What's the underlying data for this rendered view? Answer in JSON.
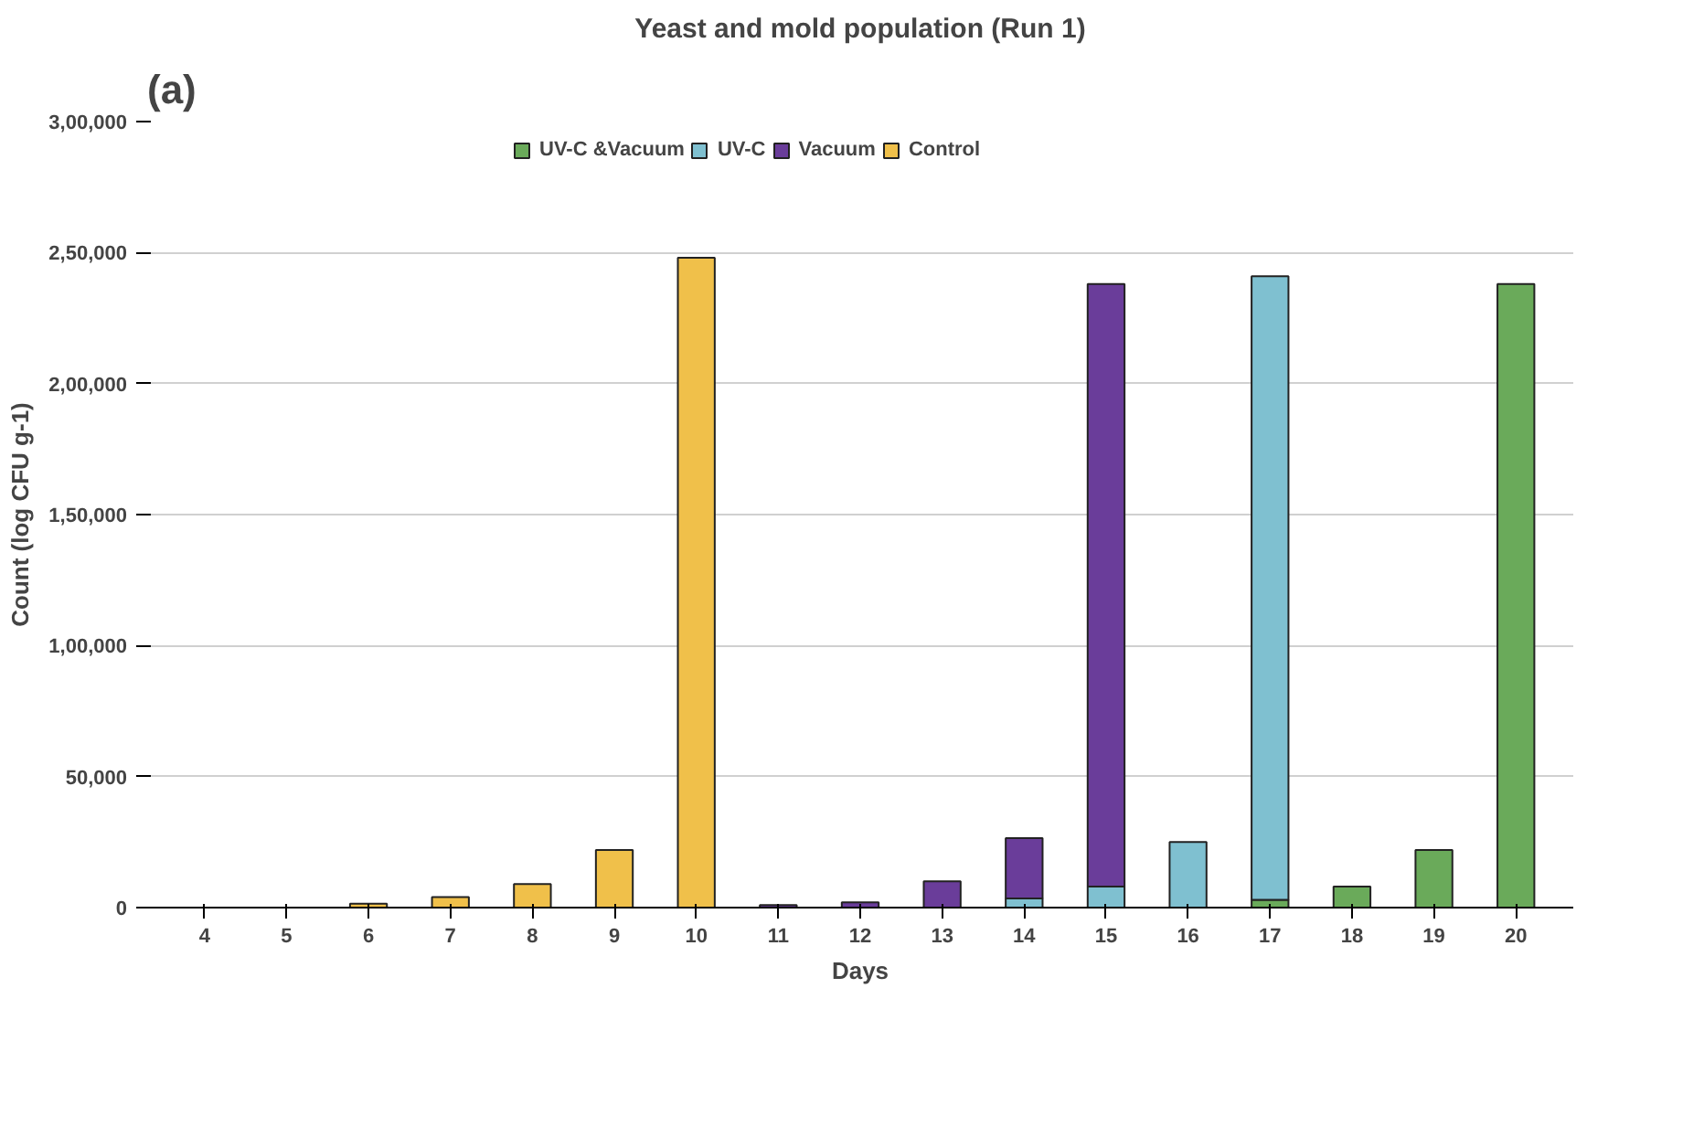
{
  "chart_data": {
    "type": "bar",
    "title": "Yeast and mold population (Run 1)",
    "xlabel": "Days",
    "ylabel": "Count (log CFU g-1)",
    "annotations": [
      "(a)"
    ],
    "categories": [
      "4",
      "5",
      "6",
      "7",
      "8",
      "9",
      "10",
      "11",
      "12",
      "13",
      "14",
      "15",
      "16",
      "17",
      "18",
      "19",
      "20"
    ],
    "stacked": true,
    "series": [
      {
        "name": "UV-C &Vacuum",
        "color": "#6aaa5a",
        "values": [
          null,
          null,
          null,
          null,
          null,
          null,
          null,
          null,
          null,
          null,
          null,
          null,
          null,
          3000,
          8000,
          22000,
          238000
        ]
      },
      {
        "name": "UV-C",
        "color": "#7fc0d0",
        "values": [
          null,
          null,
          null,
          null,
          null,
          null,
          null,
          null,
          null,
          null,
          3500,
          8000,
          25000,
          238000,
          null,
          null,
          null
        ]
      },
      {
        "name": "Vacuum",
        "color": "#6a3d9a",
        "values": [
          null,
          null,
          null,
          null,
          null,
          null,
          null,
          1000,
          2000,
          10000,
          23000,
          230000,
          null,
          null,
          null,
          null,
          null
        ]
      },
      {
        "name": "Control",
        "color": "#f0c04a",
        "values": [
          null,
          null,
          1500,
          4000,
          9000,
          22000,
          248000,
          null,
          null,
          null,
          null,
          null,
          null,
          null,
          null,
          null,
          null
        ]
      }
    ],
    "ylim": [
      0,
      300000
    ],
    "yticks": [
      {
        "value": 0,
        "label": "0"
      },
      {
        "value": 50000,
        "label": "50,000"
      },
      {
        "value": 100000,
        "label": "1,00,000"
      },
      {
        "value": 150000,
        "label": "1,50,000"
      },
      {
        "value": 200000,
        "label": "2,00,000"
      },
      {
        "value": 250000,
        "label": "2,50,000"
      },
      {
        "value": 300000,
        "label": "3,00,000"
      }
    ],
    "grid": "y",
    "legend": "top"
  }
}
